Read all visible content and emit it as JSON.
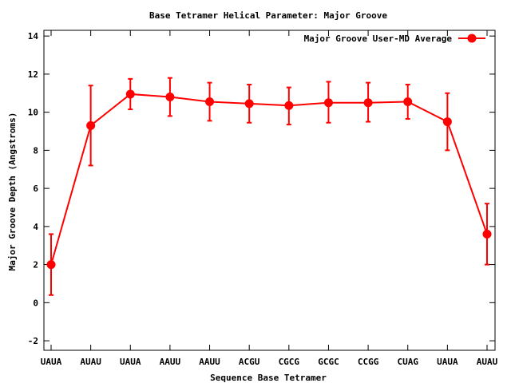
{
  "chart_data": {
    "type": "line",
    "title": "Base Tetramer Helical Parameter: Major Groove",
    "xlabel": "Sequence Base Tetramer",
    "ylabel": "Major Groove Depth (Angstroms)",
    "categories": [
      "UAUA",
      "AUAU",
      "UAUA",
      "AAUU",
      "AAUU",
      "ACGU",
      "CGCG",
      "GCGC",
      "CCGG",
      "CUAG",
      "UAUA",
      "AUAU"
    ],
    "ylim": [
      -2.5,
      14.3
    ],
    "yticks": [
      -2,
      0,
      2,
      4,
      6,
      8,
      10,
      12,
      14
    ],
    "grid": false,
    "legend_position": "top-right",
    "series": [
      {
        "name": "Major Groove User-MD Average",
        "color": "#ff0000",
        "values": [
          2.0,
          9.3,
          10.95,
          10.8,
          10.55,
          10.45,
          10.35,
          10.5,
          10.5,
          10.55,
          9.5,
          3.6
        ],
        "error_low": [
          0.4,
          7.2,
          10.15,
          9.8,
          9.55,
          9.45,
          9.35,
          9.45,
          9.5,
          9.65,
          8.0,
          2.0
        ],
        "error_high": [
          3.6,
          11.4,
          11.75,
          11.8,
          11.55,
          11.45,
          11.3,
          11.6,
          11.55,
          11.45,
          11.0,
          5.2
        ]
      }
    ]
  }
}
